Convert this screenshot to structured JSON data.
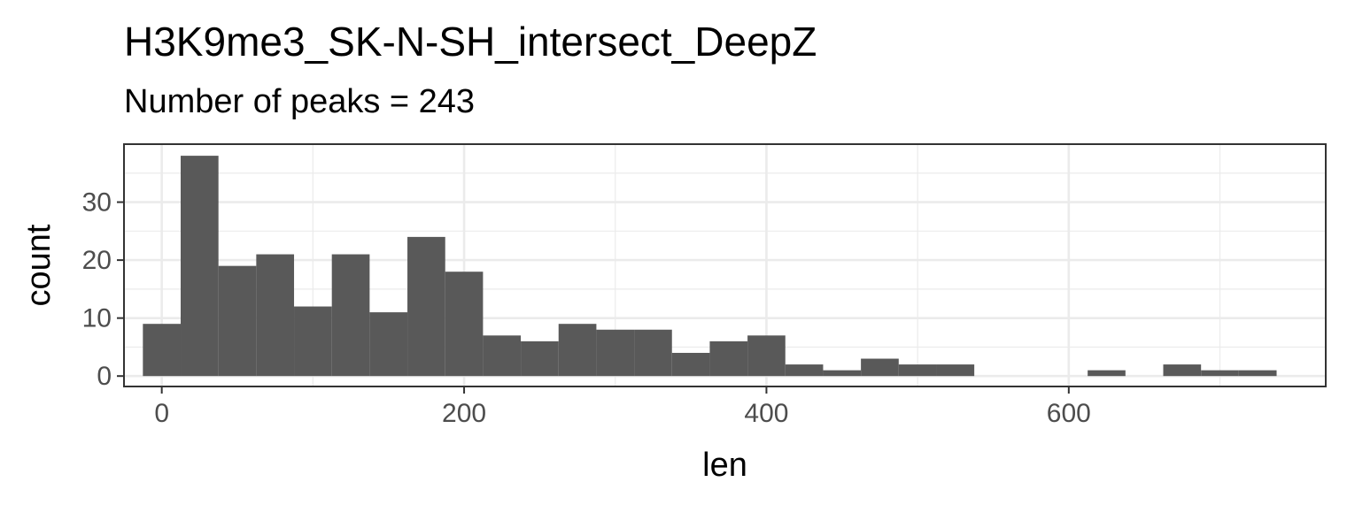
{
  "chart_data": {
    "type": "bar",
    "title": "H3K9me3_SK-N-SH_intersect_DeepZ",
    "subtitle": "Number of peaks = 243",
    "xlabel": "len",
    "ylabel": "count",
    "bin_width": 25,
    "bin_centers": [
      0,
      25,
      50,
      75,
      100,
      125,
      150,
      175,
      200,
      225,
      250,
      275,
      300,
      325,
      350,
      375,
      400,
      425,
      450,
      475,
      500,
      525,
      550,
      575,
      600,
      625,
      650,
      675,
      700,
      725
    ],
    "values": [
      9,
      38,
      19,
      21,
      12,
      21,
      11,
      24,
      18,
      7,
      6,
      9,
      8,
      8,
      4,
      6,
      7,
      2,
      1,
      3,
      2,
      2,
      0,
      0,
      0,
      1,
      0,
      2,
      1,
      1
    ],
    "xlim": [
      -25,
      770
    ],
    "ylim": [
      -1.8,
      40
    ],
    "x_ticks": [
      0,
      200,
      400,
      600
    ],
    "x_tick_labels": [
      "0",
      "200",
      "400",
      "600"
    ],
    "y_ticks": [
      0,
      10,
      20,
      30
    ],
    "y_tick_labels": [
      "0",
      "10",
      "20",
      "30"
    ],
    "grid": true,
    "bar_color": "#595959",
    "panel_border_color": "#333333",
    "grid_color": "#ebebeb"
  }
}
